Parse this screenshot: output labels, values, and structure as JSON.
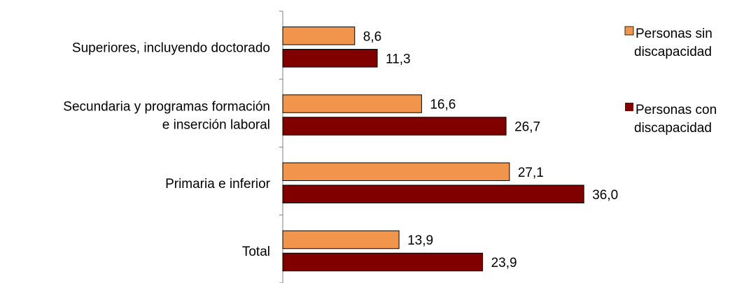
{
  "chart_data": {
    "type": "bar",
    "orientation": "horizontal",
    "categories": [
      [
        "Superiores, incluyendo doctorado"
      ],
      [
        "Secundaria y programas formación",
        "e inserción laboral"
      ],
      [
        "Primaria e inferior"
      ],
      [
        "Total"
      ]
    ],
    "series": [
      {
        "name": [
          "Personas sin",
          "discapacidad"
        ],
        "color": "#F0954B",
        "values": [
          8.6,
          16.6,
          27.1,
          13.9
        ],
        "labels": [
          "8,6",
          "16,6",
          "27,1",
          "13,9"
        ]
      },
      {
        "name": [
          "Personas con",
          "discapacidad"
        ],
        "color": "#800000",
        "values": [
          11.3,
          26.7,
          36.0,
          23.9
        ],
        "labels": [
          "11,3",
          "26,7",
          "36,0",
          "23,9"
        ]
      }
    ],
    "xlim": [
      0,
      40
    ],
    "grid": false,
    "legend": "right"
  }
}
